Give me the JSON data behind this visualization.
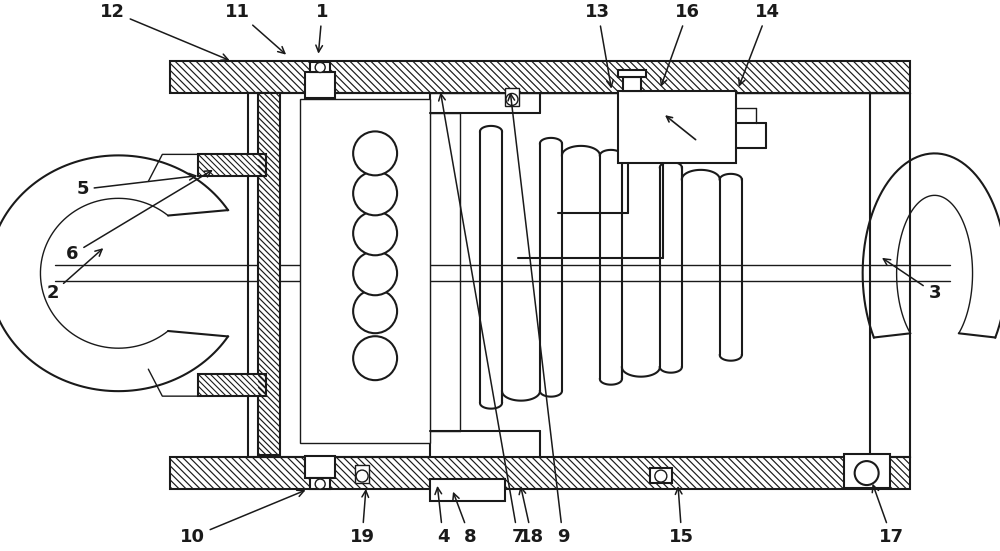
{
  "bg": "#ffffff",
  "lc": "#1a1a1a",
  "lw": 1.5,
  "lwt": 1.0,
  "lws": 0.8,
  "label_fs": 13,
  "figw": 10.0,
  "figh": 5.51,
  "dpi": 100,
  "labels": [
    [
      "1",
      322,
      540,
      318,
      495
    ],
    [
      "2",
      52,
      258,
      105,
      305
    ],
    [
      "3",
      935,
      258,
      880,
      295
    ],
    [
      "4",
      443,
      14,
      437,
      68
    ],
    [
      "5",
      82,
      362,
      200,
      376
    ],
    [
      "6",
      72,
      297,
      215,
      383
    ],
    [
      "7",
      518,
      14,
      440,
      462
    ],
    [
      "8",
      470,
      14,
      452,
      62
    ],
    [
      "9",
      563,
      14,
      510,
      462
    ],
    [
      "10",
      192,
      14,
      308,
      62
    ],
    [
      "11",
      237,
      540,
      288,
      495
    ],
    [
      "12",
      112,
      540,
      232,
      490
    ],
    [
      "13",
      598,
      540,
      612,
      460
    ],
    [
      "14",
      768,
      540,
      738,
      462
    ],
    [
      "15",
      682,
      14,
      678,
      68
    ],
    [
      "16",
      688,
      540,
      660,
      462
    ],
    [
      "17",
      892,
      14,
      872,
      70
    ],
    [
      "18",
      532,
      14,
      520,
      68
    ],
    [
      "19",
      362,
      14,
      366,
      65
    ]
  ]
}
